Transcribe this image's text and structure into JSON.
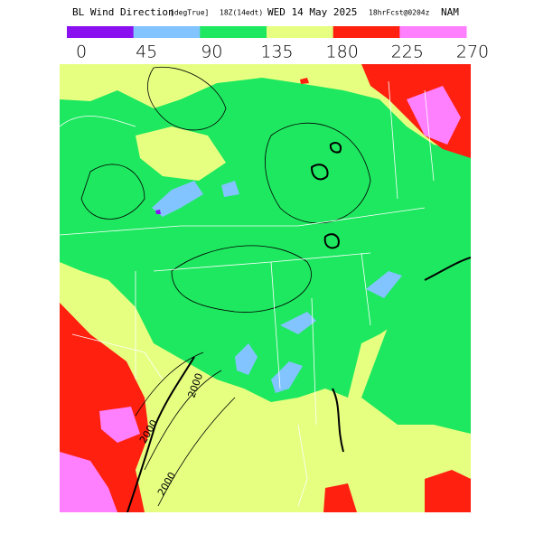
{
  "header": {
    "parts": [
      "BL Wind Direction",
      "[degTrue]",
      "18Z(14edt)",
      "WED 14 May 2025",
      "18hrFcst@0204z",
      "NAM"
    ]
  },
  "colorbar": {
    "ticks": [
      0,
      45,
      90,
      135,
      180,
      225,
      270
    ],
    "colors": [
      "#8a10f0",
      "#82c4ff",
      "#1ee860",
      "#e6ff80",
      "#ff2010",
      "#ff80ff"
    ]
  },
  "contour_labels": [
    "2000",
    "2000",
    "2000"
  ]
}
